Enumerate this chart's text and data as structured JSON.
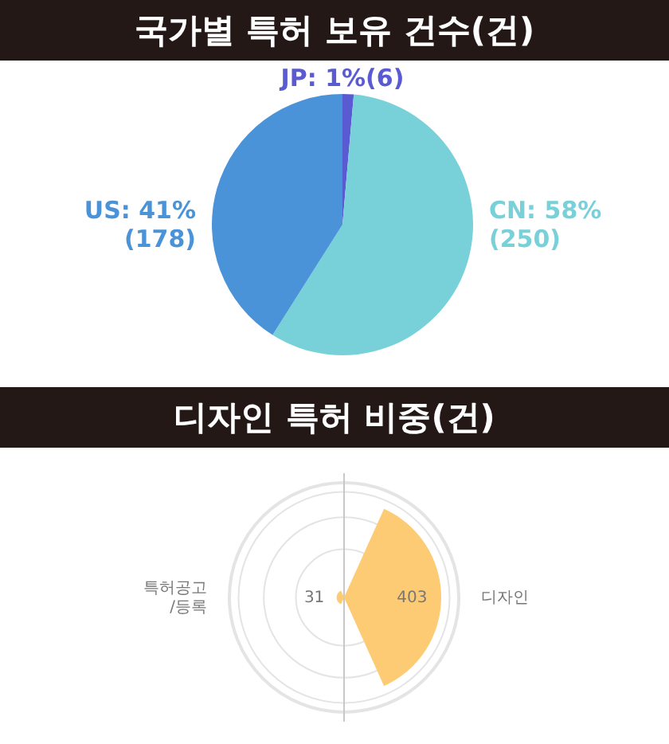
{
  "chart_data": [
    {
      "type": "pie",
      "title": "국가별 특허 보유 건수(건)",
      "categories": [
        "JP",
        "CN",
        "US"
      ],
      "values": [
        6,
        250,
        178
      ],
      "colors": [
        "#5a5ad2",
        "#78d0d9",
        "#4a93d8"
      ],
      "value_labels": [
        "1%(6)",
        "58%\n(250)",
        "41%\n(178)"
      ]
    },
    {
      "type": "other",
      "title": "디자인 특허 비중(건)",
      "categories": [
        "디자인",
        "특허공고/등록"
      ],
      "values": [
        403,
        31
      ],
      "colors": [
        "#fdcb74",
        "#fdcb74"
      ],
      "data_labels": true
    }
  ]
}
